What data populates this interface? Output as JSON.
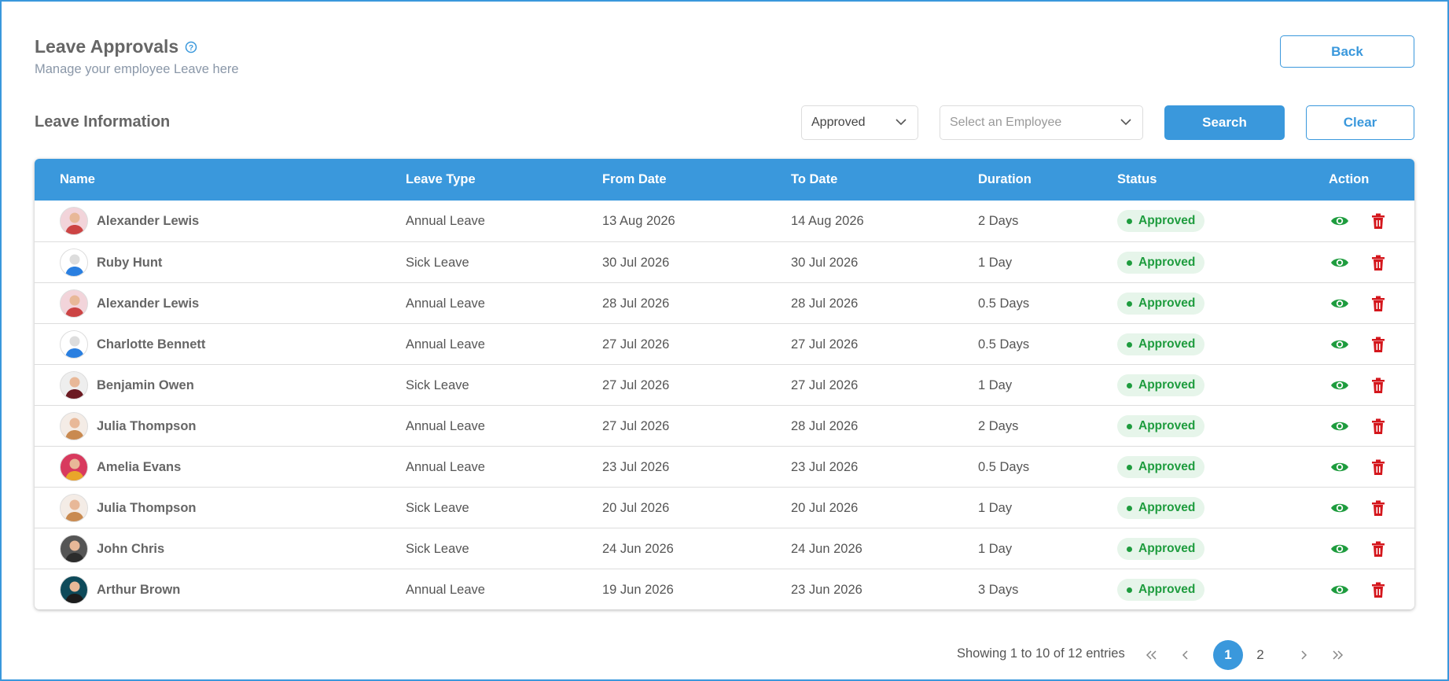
{
  "header": {
    "title": "Leave Approvals",
    "subtitle": "Manage your employee Leave here",
    "back": "Back"
  },
  "filters": {
    "section_title": "Leave Information",
    "status": "Approved",
    "employee_placeholder": "Select an Employee",
    "search": "Search",
    "clear": "Clear"
  },
  "table": {
    "columns": [
      "Name",
      "Leave Type",
      "From Date",
      "To Date",
      "Duration",
      "Status",
      "Action"
    ],
    "rows": [
      [
        "Alexander Lewis",
        "Annual Leave",
        "13 Aug 2026",
        "14 Aug 2026",
        "2 Days",
        "Approved"
      ],
      [
        "Ruby Hunt",
        "Sick Leave",
        "30 Jul 2026",
        "30 Jul 2026",
        "1 Day",
        "Approved"
      ],
      [
        "Alexander Lewis",
        "Annual Leave",
        "28 Jul 2026",
        "28 Jul 2026",
        "0.5 Days",
        "Approved"
      ],
      [
        "Charlotte Bennett",
        "Annual Leave",
        "27 Jul 2026",
        "27 Jul 2026",
        "0.5 Days",
        "Approved"
      ],
      [
        "Benjamin Owen",
        "Sick Leave",
        "27 Jul 2026",
        "27 Jul 2026",
        "1 Day",
        "Approved"
      ],
      [
        "Julia Thompson",
        "Annual Leave",
        "27 Jul 2026",
        "28 Jul 2026",
        "2 Days",
        "Approved"
      ],
      [
        "Amelia Evans",
        "Annual Leave",
        "23 Jul 2026",
        "23 Jul 2026",
        "0.5 Days",
        "Approved"
      ],
      [
        "Julia Thompson",
        "Sick Leave",
        "20 Jul 2026",
        "20 Jul 2026",
        "1 Day",
        "Approved"
      ],
      [
        "John Chris",
        "Sick Leave",
        "24 Jun 2026",
        "24 Jun 2026",
        "1 Day",
        "Approved"
      ],
      [
        "Arthur Brown",
        "Annual Leave",
        "19 Jun 2026",
        "23 Jun 2026",
        "3 Days",
        "Approved"
      ]
    ]
  },
  "pagination": {
    "summary": "Showing 1 to 10 of 12 entries",
    "pages": [
      "1",
      "2"
    ],
    "current": "1"
  }
}
